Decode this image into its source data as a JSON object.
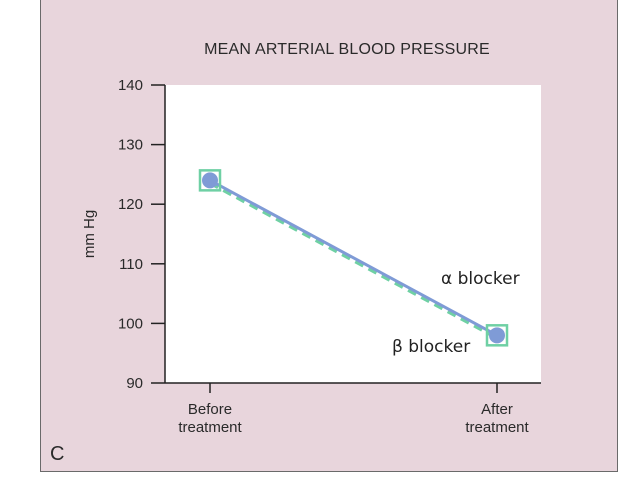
{
  "panel": {
    "letter": "C"
  },
  "chart_data": {
    "type": "line",
    "title": "MEAN ARTERIAL BLOOD PRESSURE",
    "xlabel": "",
    "ylabel": "mm Hg",
    "ylim": [
      90,
      140
    ],
    "yticks": [
      90,
      100,
      110,
      120,
      130,
      140
    ],
    "categories": [
      [
        "Before",
        "treatment"
      ],
      [
        "After",
        "treatment"
      ]
    ],
    "grid": false,
    "series": [
      {
        "name": "α blocker",
        "values": [
          124,
          98
        ],
        "color": "#7f9bd6",
        "marker": "circle",
        "line": "solid"
      },
      {
        "name": "β blocker",
        "values": [
          124,
          98
        ],
        "color": "#6fd0a4",
        "marker": "square",
        "line": "dashed"
      }
    ]
  }
}
